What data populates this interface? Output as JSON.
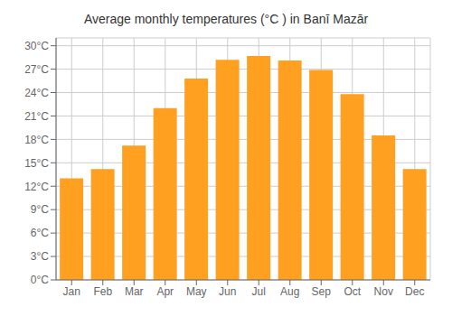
{
  "chart_data": {
    "type": "bar",
    "title": "Average monthly temperatures (°C ) in Banī Mazār",
    "categories": [
      "Jan",
      "Feb",
      "Mar",
      "Apr",
      "May",
      "Jun",
      "Jul",
      "Aug",
      "Sep",
      "Oct",
      "Nov",
      "Dec"
    ],
    "values": [
      13.0,
      14.2,
      17.2,
      22.0,
      25.8,
      28.2,
      28.7,
      28.1,
      26.9,
      23.8,
      18.5,
      14.2
    ],
    "color": "#FFA020",
    "ylim": [
      0,
      31
    ],
    "yticks": [
      {
        "value": 0,
        "label": "0°C"
      },
      {
        "value": 3,
        "label": "3°C"
      },
      {
        "value": 6,
        "label": "6°C"
      },
      {
        "value": 9,
        "label": "9°C"
      },
      {
        "value": 12,
        "label": "12°C"
      },
      {
        "value": 15,
        "label": "15°C"
      },
      {
        "value": 18,
        "label": "18°C"
      },
      {
        "value": 21,
        "label": "21°C"
      },
      {
        "value": 24,
        "label": "24°C"
      },
      {
        "value": 27,
        "label": "27°C"
      },
      {
        "value": 30,
        "label": "30°C"
      }
    ],
    "grid": true
  }
}
